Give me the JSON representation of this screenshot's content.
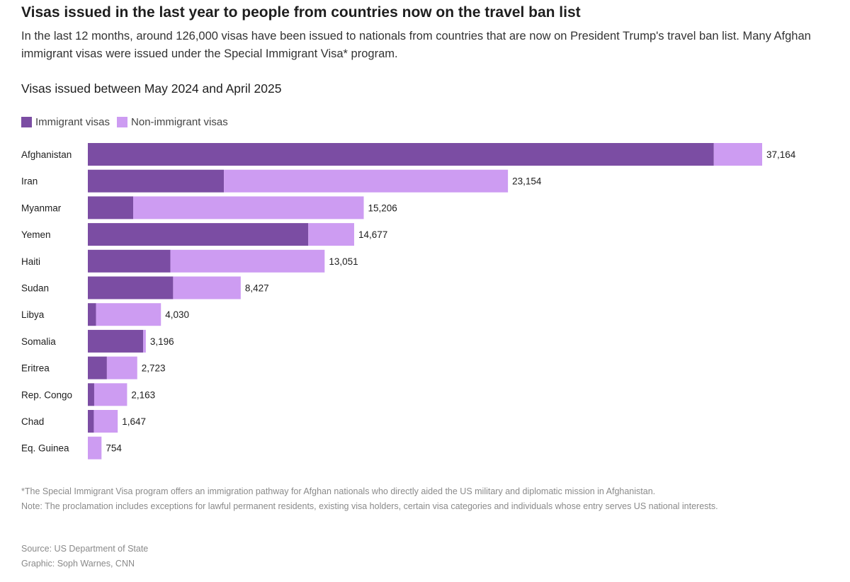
{
  "header": {
    "title": "Visas issued in the last year to people from countries now on the travel ban list",
    "subtitle": "In the last 12 months, around 126,000 visas have been issued to nationals from countries that are now on President Trump's travel ban list. Many Afghan immigrant visas were issued under the Special Immigrant Visa* program.",
    "chart_heading": "Visas issued between May 2024 and April 2025"
  },
  "colors": {
    "immigrant": "#7b4da3",
    "non_immigrant": "#cd9cf2"
  },
  "legend": {
    "immigrant_label": "Immigrant visas",
    "non_immigrant_label": "Non-immigrant visas"
  },
  "chart_data": {
    "type": "bar",
    "orientation": "horizontal",
    "stacked": true,
    "title": "Visas issued between May 2024 and April 2025",
    "legend_position": "top-left",
    "grid": false,
    "categories": [
      "Afghanistan",
      "Iran",
      "Myanmar",
      "Yemen",
      "Haiti",
      "Sudan",
      "Libya",
      "Somalia",
      "Eritrea",
      "Rep. Congo",
      "Chad",
      "Eq. Guinea"
    ],
    "series": [
      {
        "name": "Immigrant visas",
        "values": [
          34500,
          7500,
          2500,
          12150,
          4550,
          4700,
          450,
          3050,
          1050,
          350,
          330,
          0
        ]
      },
      {
        "name": "Non-immigrant visas",
        "values": [
          2664,
          15654,
          12706,
          2527,
          8501,
          3727,
          3580,
          146,
          1673,
          1813,
          1317,
          754
        ]
      }
    ],
    "totals": [
      37164,
      23154,
      15206,
      14677,
      13051,
      8427,
      4030,
      3196,
      2723,
      2163,
      1647,
      754
    ],
    "total_labels": [
      "37,164",
      "23,154",
      "15,206",
      "14,677",
      "13,051",
      "8,427",
      "4,030",
      "3,196",
      "2,723",
      "2,163",
      "1,647",
      "754"
    ]
  },
  "footer": {
    "note_sivp": "*The Special Immigrant Visa program offers an immigration pathway for Afghan nationals who directly aided the US military and diplomatic mission in Afghanistan.",
    "note_proclamation": "Note: The proclamation includes exceptions for lawful permanent residents, existing visa holders, certain visa categories and individuals whose entry serves US national interests.",
    "source": "Source: US Department of State",
    "graphic": "Graphic: Soph Warnes, CNN"
  }
}
